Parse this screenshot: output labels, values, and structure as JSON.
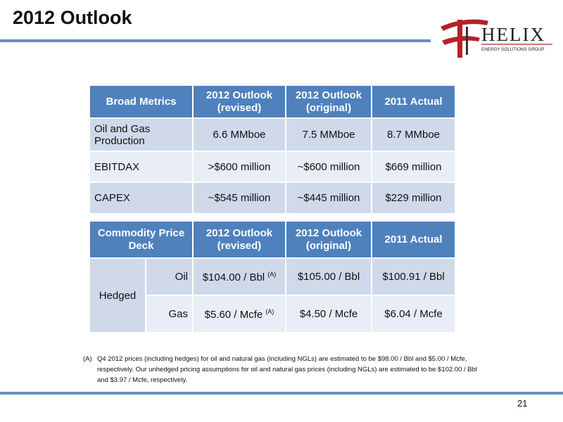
{
  "title": "2012 Outlook",
  "logo": {
    "name": "HELIX",
    "tagline": "ENERGY SOLUTIONS GROUP"
  },
  "colors": {
    "header_blue": "#4f81bd",
    "row_dark": "#d0d9ea",
    "row_light": "#e8edf6",
    "rule": "#6b8fb8",
    "logo_red": "#b52126"
  },
  "broad_metrics": {
    "headers": [
      "Broad Metrics",
      "2012 Outlook (revised)",
      "2012 Outlook (original)",
      "2011 Actual"
    ],
    "rows": [
      {
        "label": "Oil and Gas Production",
        "revised": "6.6 MMboe",
        "original": "7.5 MMboe",
        "actual": "8.7 MMboe"
      },
      {
        "label": "EBITDAX",
        "revised": ">$600 million",
        "original": "~$600 million",
        "actual": "$669 million"
      },
      {
        "label": "CAPEX",
        "revised": "~$545 million",
        "original": "~$445 million",
        "actual": "$229 million"
      }
    ]
  },
  "commodity": {
    "headers": [
      "Commodity Price Deck",
      "2012 Outlook (revised)",
      "2012 Outlook (original)",
      "2011 Actual"
    ],
    "group_label": "Hedged",
    "rows": [
      {
        "label": "Oil",
        "revised": "$104.00 / Bbl",
        "revised_note": "(A)",
        "original": "$105.00 / Bbl",
        "actual": "$100.91 / Bbl"
      },
      {
        "label": "Gas",
        "revised": "$5.60 / Mcfe",
        "revised_note": "(A)",
        "original": "$4.50 / Mcfe",
        "actual": "$6.04 / Mcfe"
      }
    ]
  },
  "footnote": {
    "mark": "(A)",
    "text": "Q4 2012 prices (including hedges) for oil and natural gas (including NGLs) are estimated to be $98.00 / Bbl and $5.00 / Mcfe, respectively. Our unhedged pricing assumptions for oil and natural gas prices (including NGLs) are estimated to be $102.00 / Bbl and $3.97 / Mcfe, respectively."
  },
  "page_number": "21"
}
